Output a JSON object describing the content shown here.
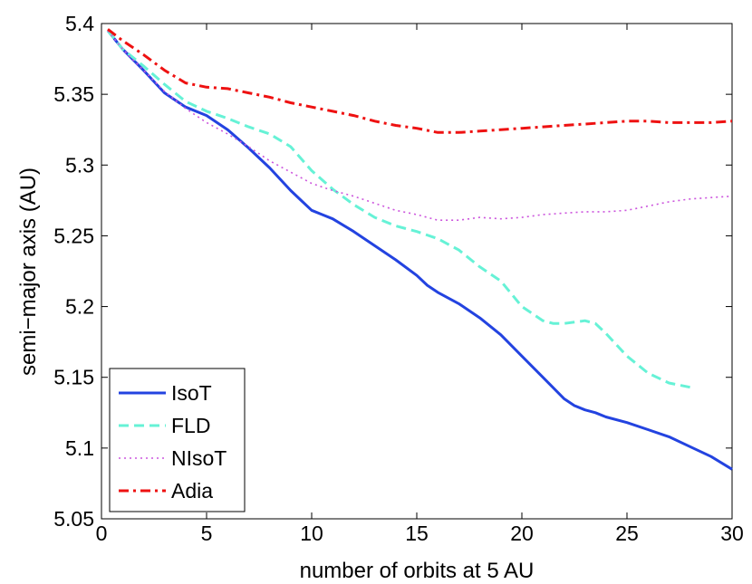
{
  "chart_data": {
    "type": "line",
    "title": "",
    "xlabel": "number of orbits at 5 AU",
    "ylabel": "semi−major axis (AU)",
    "xlim": [
      0,
      30
    ],
    "ylim": [
      5.05,
      5.4
    ],
    "xticks": [
      0,
      5,
      10,
      15,
      20,
      25,
      30
    ],
    "xtick_labels": [
      "0",
      "5",
      "10",
      "15",
      "20",
      "25",
      "30"
    ],
    "yticks": [
      5.05,
      5.1,
      5.15,
      5.2,
      5.25,
      5.3,
      5.35,
      5.4
    ],
    "ytick_labels": [
      "5.05",
      "5.1",
      "5.15",
      "5.2",
      "5.25",
      "5.3",
      "5.35",
      "5.4"
    ],
    "grid": false,
    "legend_position": "bottom-left",
    "series": [
      {
        "name": "IsoT",
        "color": "#2343e0",
        "style": "solid",
        "x": [
          0.3,
          1,
          2,
          3,
          4,
          5,
          6,
          7,
          8,
          9,
          9.5,
          10,
          10.5,
          11,
          12,
          13,
          14,
          15,
          15.5,
          16,
          17,
          18,
          19,
          20,
          21,
          22,
          22.5,
          23,
          23.5,
          24,
          25,
          26,
          27,
          28,
          29,
          30
        ],
        "y": [
          5.395,
          5.382,
          5.367,
          5.351,
          5.341,
          5.335,
          5.325,
          5.312,
          5.298,
          5.282,
          5.275,
          5.268,
          5.265,
          5.262,
          5.253,
          5.243,
          5.233,
          5.222,
          5.215,
          5.21,
          5.202,
          5.192,
          5.18,
          5.165,
          5.15,
          5.135,
          5.13,
          5.127,
          5.125,
          5.122,
          5.118,
          5.113,
          5.108,
          5.101,
          5.094,
          5.085
        ]
      },
      {
        "name": "FLD",
        "color": "#66f2d6",
        "style": "dashed",
        "x": [
          0.3,
          1,
          2,
          3,
          4,
          5,
          6,
          7,
          8,
          9,
          10,
          11,
          12,
          13,
          14,
          15,
          16,
          17,
          18,
          19,
          20,
          21,
          21.5,
          22,
          22.5,
          23,
          23.5,
          24,
          25,
          26,
          27,
          28
        ],
        "y": [
          5.395,
          5.382,
          5.37,
          5.357,
          5.345,
          5.338,
          5.333,
          5.327,
          5.322,
          5.313,
          5.296,
          5.283,
          5.272,
          5.263,
          5.257,
          5.253,
          5.248,
          5.24,
          5.228,
          5.218,
          5.2,
          5.19,
          5.188,
          5.188,
          5.189,
          5.19,
          5.188,
          5.181,
          5.165,
          5.153,
          5.146,
          5.143
        ]
      },
      {
        "name": "NIsoT",
        "color": "#cc55dd",
        "style": "dotted",
        "x": [
          0.3,
          1,
          2,
          3,
          4,
          5,
          6,
          7,
          8,
          9,
          10,
          11,
          12,
          13,
          14,
          15,
          16,
          17,
          18,
          19,
          20,
          21,
          22,
          23,
          24,
          25,
          26,
          27,
          28,
          29,
          30
        ],
        "y": [
          5.395,
          5.382,
          5.367,
          5.352,
          5.34,
          5.33,
          5.322,
          5.313,
          5.303,
          5.295,
          5.287,
          5.282,
          5.278,
          5.273,
          5.268,
          5.265,
          5.261,
          5.261,
          5.263,
          5.262,
          5.263,
          5.265,
          5.266,
          5.267,
          5.267,
          5.268,
          5.271,
          5.274,
          5.276,
          5.277,
          5.278
        ]
      },
      {
        "name": "Adia",
        "color": "#ee1111",
        "style": "dashdot",
        "x": [
          0.3,
          1,
          2,
          3,
          4,
          5,
          6,
          7,
          8,
          9,
          10,
          11,
          12,
          13,
          14,
          15,
          16,
          17,
          18,
          19,
          20,
          21,
          22,
          23,
          24,
          25,
          26,
          27,
          28,
          29,
          30
        ],
        "y": [
          5.396,
          5.388,
          5.378,
          5.367,
          5.358,
          5.355,
          5.354,
          5.351,
          5.348,
          5.344,
          5.341,
          5.338,
          5.335,
          5.331,
          5.328,
          5.326,
          5.323,
          5.323,
          5.324,
          5.325,
          5.326,
          5.327,
          5.328,
          5.329,
          5.33,
          5.331,
          5.331,
          5.33,
          5.33,
          5.33,
          5.331
        ]
      }
    ]
  }
}
